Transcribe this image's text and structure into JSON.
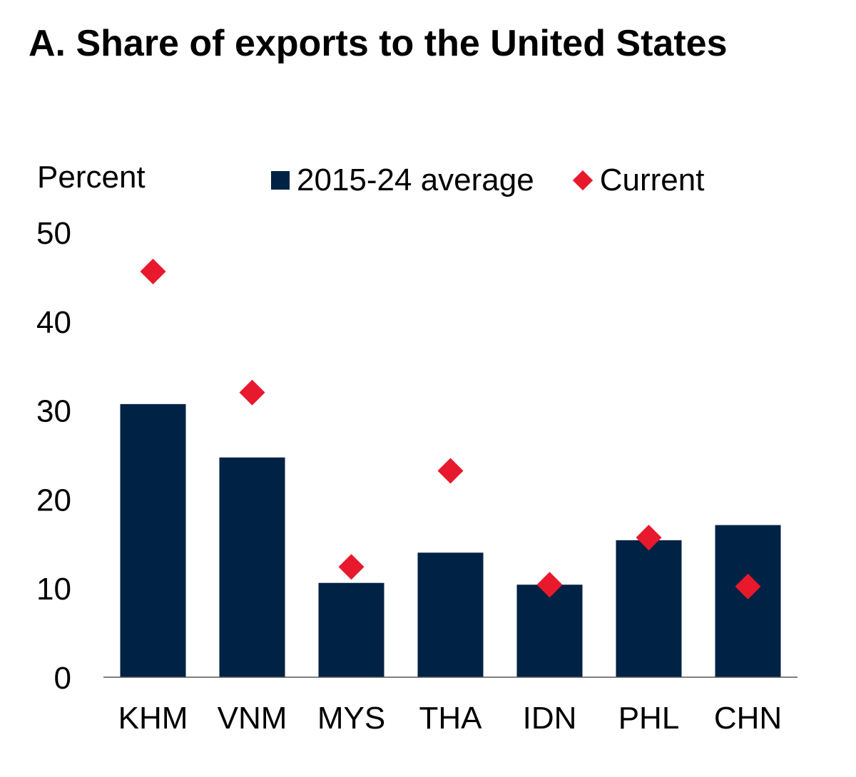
{
  "chart_data": {
    "type": "bar",
    "title": "A. Share of exports to the United States",
    "ylabel": "Percent",
    "xlabel": "",
    "ylim": [
      0,
      50
    ],
    "yticks": [
      0,
      10,
      20,
      30,
      40,
      50
    ],
    "grid": false,
    "legend_placement": "top",
    "categories": [
      "KHM",
      "VNM",
      "MYS",
      "THA",
      "IDN",
      "PHL",
      "CHN"
    ],
    "series": [
      {
        "name": "2015-24 average",
        "kind": "bar",
        "color": "#002244",
        "values": [
          30.7,
          24.7,
          10.6,
          14.0,
          10.4,
          15.4,
          17.1
        ]
      },
      {
        "name": "Current",
        "kind": "diamond",
        "color": "#e8192c",
        "values": [
          45.6,
          32.0,
          12.4,
          23.2,
          10.4,
          15.7,
          10.2
        ]
      }
    ]
  }
}
